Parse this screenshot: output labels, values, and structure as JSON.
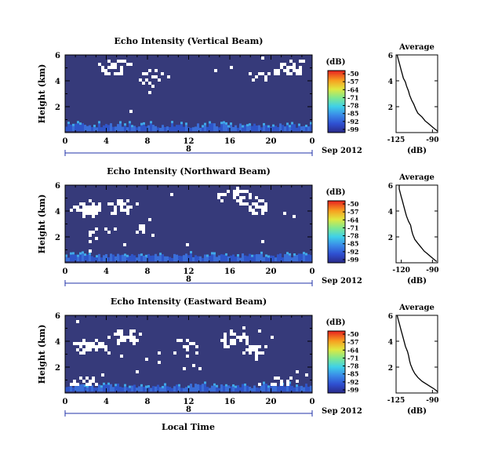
{
  "x_axis_label": "Local Time",
  "chart_data": [
    {
      "type": "heatmap",
      "title": "Echo Intensity (Vertical Beam)",
      "ylabel": "Height (km)",
      "y_ticks": [
        "2",
        "4",
        "6"
      ],
      "x_ticks": [
        "0",
        "4",
        "8",
        "12",
        "16",
        "20",
        "0"
      ],
      "date_day": "8",
      "date_label": "Sep 2012",
      "xlim": [
        0,
        24
      ],
      "ylim": [
        0,
        6
      ],
      "colorbar": {
        "unit": "(dB)",
        "ticks": [
          "-50",
          "-57",
          "-64",
          "-71",
          "-78",
          "-85",
          "-92",
          "-99"
        ],
        "range": [
          -99,
          -50
        ]
      },
      "cloud_level": 0.35,
      "background_color": "#363a7a",
      "profile": {
        "title": "Average",
        "xlabel": "(dB)",
        "x_ticks": [
          "-125",
          "-90"
        ],
        "y_ticks": [
          "2",
          "4",
          "6"
        ],
        "xlim": [
          -125,
          -85
        ],
        "x": [
          -85,
          -88,
          -91,
          -94,
          -97,
          -100,
          -104,
          -106,
          -108,
          -110,
          -112,
          -113,
          -115,
          -116,
          -118,
          -119,
          -120,
          -121,
          -122,
          -123,
          -124
        ],
        "y": [
          0.1,
          0.3,
          0.5,
          0.7,
          0.9,
          1.2,
          1.5,
          1.8,
          2.2,
          2.5,
          2.9,
          3.2,
          3.6,
          3.9,
          4.2,
          4.5,
          4.8,
          5.1,
          5.4,
          5.7,
          6.0
        ]
      }
    },
    {
      "type": "heatmap",
      "title": "Echo Intensity (Northward Beam)",
      "ylabel": "Height (km)",
      "y_ticks": [
        "2",
        "4",
        "6"
      ],
      "x_ticks": [
        "0",
        "4",
        "8",
        "12",
        "16",
        "20",
        "0"
      ],
      "date_day": "8",
      "date_label": "Sep 2012",
      "xlim": [
        0,
        24
      ],
      "ylim": [
        0,
        6
      ],
      "colorbar": {
        "unit": "(dB)",
        "ticks": [
          "-50",
          "-57",
          "-64",
          "-71",
          "-78",
          "-85",
          "-92",
          "-99"
        ],
        "range": [
          -99,
          -50
        ]
      },
      "cloud_level": 0.6,
      "background_color": "#363a7a",
      "profile": {
        "title": "Average",
        "xlabel": "(dB)",
        "x_ticks": [
          "-120",
          "-90"
        ],
        "y_ticks": [
          "2",
          "4",
          "6"
        ],
        "xlim": [
          -125,
          -85
        ],
        "x": [
          -86,
          -89,
          -92,
          -95,
          -98,
          -101,
          -104,
          -107,
          -109,
          -110,
          -111,
          -113,
          -115,
          -116,
          -117,
          -118,
          -119,
          -120,
          -121,
          -122,
          -122
        ],
        "y": [
          0.1,
          0.3,
          0.5,
          0.7,
          0.9,
          1.2,
          1.5,
          1.8,
          2.2,
          2.5,
          2.9,
          3.2,
          3.6,
          3.9,
          4.2,
          4.5,
          4.8,
          5.1,
          5.4,
          5.7,
          6.0
        ]
      }
    },
    {
      "type": "heatmap",
      "title": "Echo Intensity (Eastward Beam)",
      "ylabel": "Height (km)",
      "y_ticks": [
        "2",
        "4",
        "6"
      ],
      "x_ticks": [
        "0",
        "4",
        "8",
        "12",
        "16",
        "20",
        "0"
      ],
      "date_day": "8",
      "date_label": "Sep 2012",
      "xlim": [
        0,
        24
      ],
      "ylim": [
        0,
        6
      ],
      "colorbar": {
        "unit": "(dB)",
        "ticks": [
          "-50",
          "-57",
          "-64",
          "-71",
          "-78",
          "-85",
          "-92",
          "-99"
        ],
        "range": [
          -99,
          -50
        ]
      },
      "cloud_level": 1.0,
      "background_color": "#363a7a",
      "profile": {
        "title": "Average",
        "xlabel": "(dB)",
        "x_ticks": [
          "-125",
          "-90"
        ],
        "y_ticks": [
          "2",
          "4",
          "6"
        ],
        "xlim": [
          -125,
          -85
        ],
        "x": [
          -85,
          -88,
          -92,
          -96,
          -100,
          -104,
          -107,
          -109,
          -111,
          -112,
          -113,
          -114,
          -116,
          -117,
          -118,
          -119,
          -120,
          -121,
          -122,
          -123,
          -124
        ],
        "y": [
          0.1,
          0.3,
          0.5,
          0.7,
          0.9,
          1.2,
          1.5,
          1.8,
          2.2,
          2.5,
          2.9,
          3.2,
          3.6,
          3.9,
          4.2,
          4.5,
          4.8,
          5.1,
          5.4,
          5.7,
          6.0
        ]
      }
    }
  ]
}
